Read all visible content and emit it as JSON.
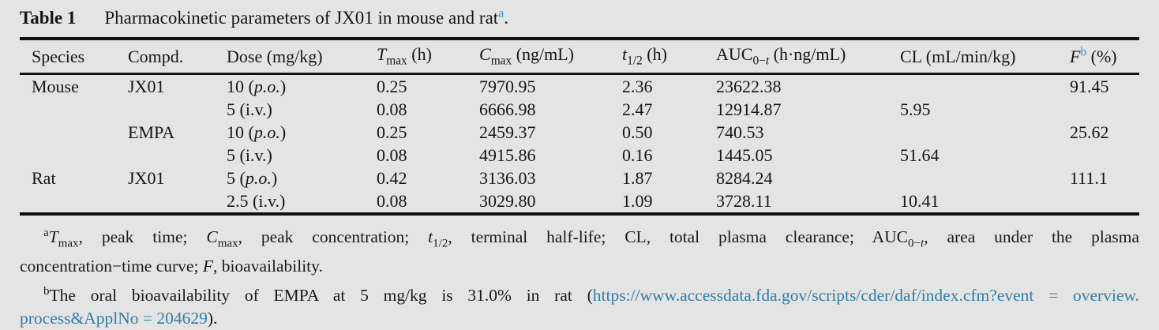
{
  "colors": {
    "background": "#e4e4e4",
    "text": "#161616",
    "rule": "#101010",
    "accent_superscript": "#3e97c1",
    "link": "#2d7fa7"
  },
  "caption": {
    "label": "Table 1",
    "text": [
      {
        "t": "Pharmacokinetic parameters of JX01 in mouse and rat",
        "n": "caption-text-main"
      },
      {
        "t": "a",
        "s": "sup",
        "c": "accent",
        "n": "footnote-a-marker-caption"
      },
      {
        "t": ".",
        "n": "caption-period"
      }
    ]
  },
  "table": {
    "columns": [
      {
        "key": "species",
        "header": [
          {
            "t": "Species"
          }
        ]
      },
      {
        "key": "compd",
        "header": [
          {
            "t": "Compd."
          }
        ]
      },
      {
        "key": "dose",
        "header": [
          {
            "t": "Dose (mg/kg)"
          }
        ]
      },
      {
        "key": "tmax",
        "header": [
          {
            "t": "T",
            "i": 1
          },
          {
            "t": "max",
            "s": "sub"
          },
          {
            "t": " (h)"
          }
        ]
      },
      {
        "key": "cmax",
        "header": [
          {
            "t": "C",
            "i": 1
          },
          {
            "t": "max",
            "s": "sub"
          },
          {
            "t": " (ng/mL)"
          }
        ]
      },
      {
        "key": "t_half",
        "header": [
          {
            "t": "t",
            "i": 1
          },
          {
            "t": "1/2",
            "s": "sub"
          },
          {
            "t": " (h)"
          }
        ]
      },
      {
        "key": "auc",
        "header": [
          {
            "t": "AUC"
          },
          {
            "t": "0−",
            "s": "sub"
          },
          {
            "t": "t",
            "s": "sub",
            "i": 1
          },
          {
            "t": " (h·ng/mL)"
          }
        ]
      },
      {
        "key": "cl",
        "header": [
          {
            "t": "CL (mL/min/kg)"
          }
        ]
      },
      {
        "key": "f",
        "header": [
          {
            "t": "F",
            "i": 1
          },
          {
            "t": "b",
            "s": "sup",
            "c": "accent",
            "n": "footnote-b-marker-header"
          },
          {
            "t": " (%)"
          }
        ]
      }
    ],
    "rows": [
      {
        "species": "Mouse",
        "compd": "JX01",
        "dose": [
          {
            "t": "10 ("
          },
          {
            "t": "p.o.",
            "i": 1
          },
          {
            "t": ")"
          }
        ],
        "tmax": "0.25",
        "cmax": "7970.95",
        "t_half": "2.36",
        "auc": "23622.38",
        "cl": "",
        "f": "91.45"
      },
      {
        "species": "",
        "compd": "",
        "dose": [
          {
            "t": "5 (i.v.)"
          }
        ],
        "tmax": "0.08",
        "cmax": "6666.98",
        "t_half": "2.47",
        "auc": "12914.87",
        "cl": "5.95",
        "f": ""
      },
      {
        "species": "",
        "compd": "EMPA",
        "dose": [
          {
            "t": "10 ("
          },
          {
            "t": "p.o.",
            "i": 1
          },
          {
            "t": ")"
          }
        ],
        "tmax": "0.25",
        "cmax": "2459.37",
        "t_half": "0.50",
        "auc": "740.53",
        "cl": "",
        "f": "25.62"
      },
      {
        "species": "",
        "compd": "",
        "dose": [
          {
            "t": "5 (i.v.)"
          }
        ],
        "tmax": "0.08",
        "cmax": "4915.86",
        "t_half": "0.16",
        "auc": "1445.05",
        "cl": "51.64",
        "f": ""
      },
      {
        "species": "Rat",
        "compd": "JX01",
        "dose": [
          {
            "t": "5 ("
          },
          {
            "t": "p.o.",
            "i": 1
          },
          {
            "t": ")"
          }
        ],
        "tmax": "0.42",
        "cmax": "3136.03",
        "t_half": "1.87",
        "auc": "8284.24",
        "cl": "",
        "f": "111.1"
      },
      {
        "species": "",
        "compd": "",
        "dose": [
          {
            "t": "2.5 (i.v.)"
          }
        ],
        "tmax": "0.08",
        "cmax": "3029.80",
        "t_half": "1.09",
        "auc": "3728.11",
        "cl": "10.41",
        "f": ""
      }
    ]
  },
  "footnotes": {
    "a_line1": [
      {
        "t": "a",
        "s": "sup",
        "n": "footnote-a-marker"
      },
      {
        "t": "T",
        "i": 1
      },
      {
        "t": "max",
        "s": "sub"
      },
      {
        "t": ", peak time; "
      },
      {
        "t": "C",
        "i": 1
      },
      {
        "t": "max",
        "s": "sub"
      },
      {
        "t": ", peak concentration; "
      },
      {
        "t": "t",
        "i": 1
      },
      {
        "t": "1/2",
        "s": "sub"
      },
      {
        "t": ", terminal half-life; CL, total plasma clearance; AUC"
      },
      {
        "t": "0−",
        "s": "sub"
      },
      {
        "t": "t",
        "s": "sub",
        "i": 1
      },
      {
        "t": ", area under the plasma"
      }
    ],
    "a_line2": [
      {
        "t": "concentration−time curve; "
      },
      {
        "t": "F",
        "i": 1
      },
      {
        "t": ", bioavailability."
      }
    ],
    "b_line1": [
      {
        "t": "b",
        "s": "sup",
        "n": "footnote-b-marker"
      },
      {
        "t": "The oral bioavailability of EMPA at 5 mg/kg is 31.0% in rat ("
      },
      {
        "t": "https://www.accessdata.fda.gov/scripts/cder/daf/index.cfm?event = overview.",
        "c": "link",
        "n": "fda-link-part1"
      }
    ],
    "b_line2": [
      {
        "t": "process&ApplNo = 204629",
        "c": "link",
        "n": "fda-link-part2"
      },
      {
        "t": ")."
      }
    ]
  }
}
